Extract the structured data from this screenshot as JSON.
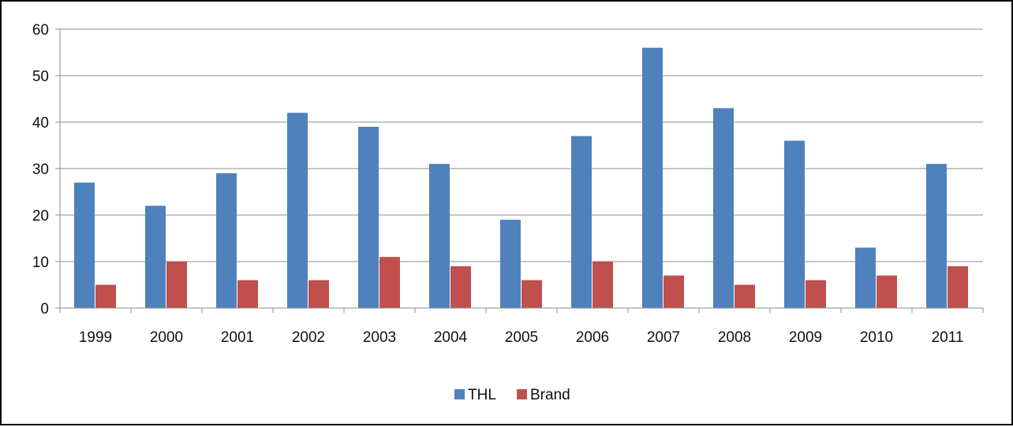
{
  "chart_data": {
    "type": "bar",
    "categories": [
      "1999",
      "2000",
      "2001",
      "2002",
      "2003",
      "2004",
      "2005",
      "2006",
      "2007",
      "2008",
      "2009",
      "2010",
      "2011"
    ],
    "series": [
      {
        "name": "THL",
        "color": "#4F81BD",
        "values": [
          27,
          22,
          29,
          42,
          39,
          31,
          19,
          37,
          56,
          43,
          36,
          13,
          31
        ]
      },
      {
        "name": "Brand",
        "color": "#C0504D",
        "values": [
          5,
          10,
          6,
          6,
          11,
          9,
          6,
          10,
          7,
          5,
          6,
          7,
          9
        ]
      }
    ],
    "ylim": [
      0,
      60
    ],
    "yticks": [
      0,
      10,
      20,
      30,
      40,
      50,
      60
    ],
    "grid": true,
    "legend": "bottom-center",
    "title": "",
    "xlabel": "",
    "ylabel": ""
  }
}
